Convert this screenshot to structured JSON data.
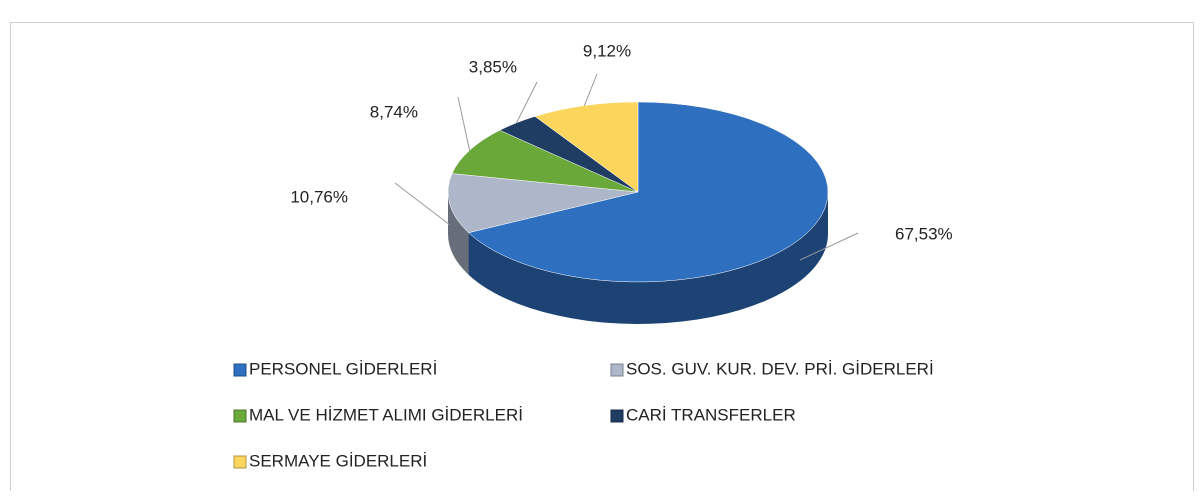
{
  "chart_data": {
    "type": "pie",
    "categories": [
      "PERSONEL GİDERLERİ",
      "SOS. GUV. KUR. DEV. PRİ. GİDERLERİ",
      "MAL VE HİZMET ALIMI GİDERLERİ",
      "CARİ TRANSFERLER",
      "SERMAYE GİDERLERİ"
    ],
    "values": [
      67.53,
      10.76,
      8.74,
      3.85,
      9.12
    ],
    "value_labels": [
      "67,53%",
      "10,76%",
      "8,74%",
      "3,85%",
      "9,12%"
    ],
    "colors": [
      "#2e6fbf",
      "#aeb7c9",
      "#6aa83a",
      "#1f3c63",
      "#fcd55c"
    ],
    "legend": "bottom"
  }
}
